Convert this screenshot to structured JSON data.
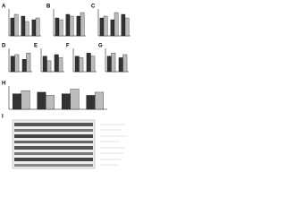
{
  "panels": [
    {
      "label": "A",
      "ylim": [
        0,
        1.5
      ],
      "series": [
        {
          "color": "#333333",
          "values": [
            1,
            1.1,
            0.9
          ]
        },
        {
          "color": "#bbbbbb",
          "values": [
            1.2,
            0.8,
            1
          ]
        }
      ]
    },
    {
      "label": "B",
      "ylim": [
        0,
        1.5
      ],
      "series": [
        {
          "color": "#333333",
          "values": [
            1,
            1.2,
            1.1
          ]
        },
        {
          "color": "#bbbbbb",
          "values": [
            0.9,
            1.1,
            1.3
          ]
        }
      ]
    },
    {
      "label": "C",
      "ylim": [
        0,
        1.5
      ],
      "series": [
        {
          "color": "#333333",
          "values": [
            1,
            0.9,
            1.2
          ]
        },
        {
          "color": "#bbbbbb",
          "values": [
            1.1,
            1.3,
            1
          ]
        }
      ]
    },
    {
      "label": "D",
      "ylim": [
        0,
        1.5
      ],
      "series": [
        {
          "color": "#333333",
          "values": [
            1,
            0.8
          ]
        },
        {
          "color": "#bbbbbb",
          "values": [
            1.1,
            1.2
          ]
        }
      ]
    },
    {
      "label": "E",
      "ylim": [
        0,
        1.5
      ],
      "series": [
        {
          "color": "#333333",
          "values": [
            1,
            1.1
          ]
        },
        {
          "color": "#bbbbbb",
          "values": [
            0.7,
            0.9
          ]
        }
      ]
    },
    {
      "label": "F",
      "ylim": [
        0,
        1.5
      ],
      "series": [
        {
          "color": "#333333",
          "values": [
            1,
            1.2
          ]
        },
        {
          "color": "#bbbbbb",
          "values": [
            0.9,
            1
          ]
        }
      ]
    },
    {
      "label": "G",
      "ylim": [
        0,
        1.5
      ],
      "series": [
        {
          "color": "#333333",
          "values": [
            1,
            0.9
          ]
        },
        {
          "color": "#bbbbbb",
          "values": [
            1.2,
            1.1
          ]
        }
      ]
    },
    {
      "label": "H",
      "ylim": [
        0,
        1.5
      ],
      "series": [
        {
          "color": "#333333",
          "values": [
            1,
            1.1,
            1,
            0.9
          ]
        },
        {
          "color": "#bbbbbb",
          "values": [
            1.2,
            0.9,
            1.3,
            1.1
          ]
        }
      ]
    }
  ],
  "blot": {
    "label": "I"
  }
}
